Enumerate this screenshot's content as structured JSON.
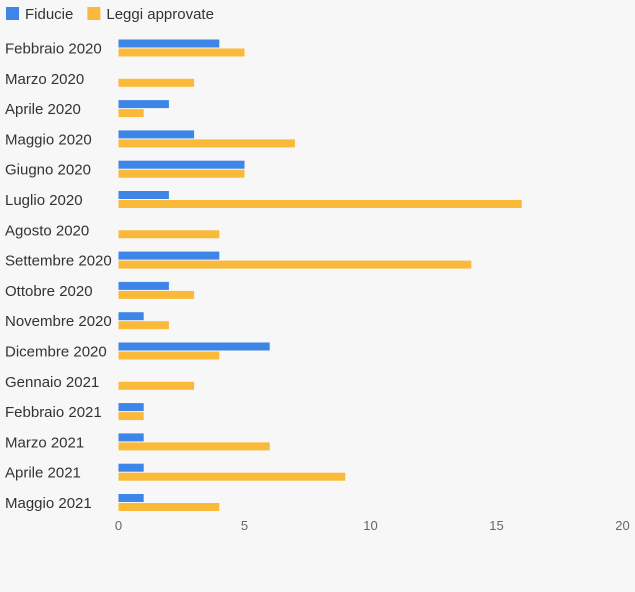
{
  "chart_data": {
    "type": "bar",
    "orientation": "horizontal",
    "title": "",
    "xlabel": "",
    "ylabel": "",
    "xlim": [
      0,
      20
    ],
    "xticks": [
      0,
      5,
      10,
      15,
      20
    ],
    "grid": false,
    "legend_position": "top-left",
    "categories": [
      "Febbraio 2020",
      "Marzo 2020",
      "Aprile 2020",
      "Maggio 2020",
      "Giugno 2020",
      "Luglio 2020",
      "Agosto 2020",
      "Settembre 2020",
      "Ottobre 2020",
      "Novembre 2020",
      "Dicembre 2020",
      "Gennaio 2021",
      "Febbraio 2021",
      "Marzo 2021",
      "Aprile 2021",
      "Maggio 2021"
    ],
    "series": [
      {
        "name": "Fiducie",
        "color": "#3d85e6",
        "values": [
          4,
          0,
          2,
          3,
          5,
          2,
          0,
          4,
          2,
          1,
          6,
          0,
          1,
          1,
          1,
          1
        ]
      },
      {
        "name": "Leggi approvate",
        "color": "#fbb93a",
        "values": [
          5,
          3,
          1,
          7,
          5,
          16,
          4,
          14,
          3,
          2,
          4,
          3,
          1,
          6,
          9,
          4
        ]
      }
    ]
  },
  "colors": {
    "background": "#f7f7f7",
    "text": "#333333",
    "tick_text": "#666666"
  }
}
